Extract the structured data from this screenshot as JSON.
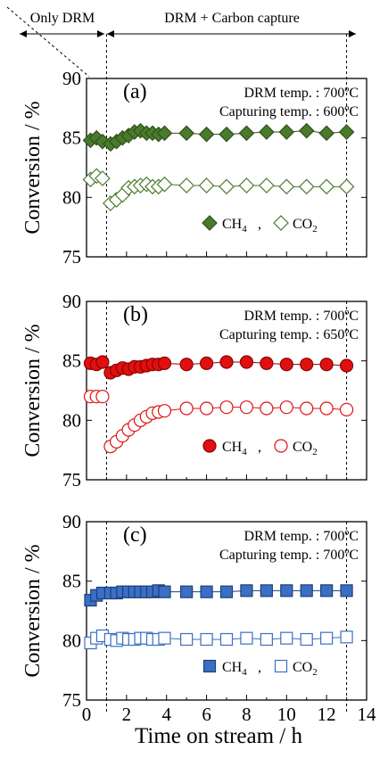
{
  "figure": {
    "top_left_label": "Only DRM",
    "top_right_label": "DRM + Carbon capture",
    "xlabel": "Time on stream / h",
    "x_ticks": [
      "0",
      "2",
      "4",
      "6",
      "8",
      "10",
      "12",
      "14"
    ],
    "legend_ch4_label": "CH",
    "legend_ch4_sub": "4",
    "legend_sep": ",",
    "legend_co2_label": "CO",
    "legend_co2_sub": "2"
  },
  "colors": {
    "a_fill": "#4a7a2c",
    "a_stroke": "#2e5218",
    "a_open": "#4a7a2c",
    "b_fill": "#e01010",
    "b_stroke": "#8b0000",
    "b_open": "#e01010",
    "c_fill": "#3a6fc4",
    "c_stroke": "#1d3f7a",
    "c_open": "#3a6fc4"
  },
  "panels": [
    {
      "label": "(a)",
      "note1": "DRM temp. : 700ºC",
      "note2": "Capturing temp. : 600ºC",
      "ylabel": "Conversion / %",
      "y_ticks": [
        "75",
        "80",
        "85",
        "90"
      ]
    },
    {
      "label": "(b)",
      "note1": "DRM temp. : 700ºC",
      "note2": "Capturing temp. : 650ºC",
      "ylabel": "Conversion / %",
      "y_ticks": [
        "75",
        "80",
        "85",
        "90"
      ]
    },
    {
      "label": "(c)",
      "note1": "DRM temp. : 700ºC",
      "note2": "Capturing temp. : 700ºC",
      "ylabel": "Conversion / %",
      "y_ticks": [
        "75",
        "80",
        "85",
        "90"
      ]
    }
  ],
  "chart_data": [
    {
      "type": "scatter",
      "title": "(a)",
      "xlabel": "",
      "ylabel": "Conversion / %",
      "xlim": [
        0,
        14
      ],
      "ylim": [
        75,
        90
      ],
      "marker": "diamond",
      "series": [
        {
          "name": "CH4",
          "filled": true,
          "x": [
            0.2,
            0.5,
            0.8,
            1.2,
            1.5,
            1.8,
            2.1,
            2.4,
            2.7,
            3.0,
            3.3,
            3.6,
            3.9,
            5,
            6,
            7,
            8,
            9,
            10,
            11,
            12,
            13
          ],
          "y": [
            84.8,
            85.0,
            84.7,
            84.5,
            84.7,
            85.0,
            85.2,
            85.5,
            85.6,
            85.4,
            85.4,
            85.3,
            85.4,
            85.4,
            85.3,
            85.3,
            85.4,
            85.5,
            85.5,
            85.6,
            85.4,
            85.5
          ]
        },
        {
          "name": "CO2",
          "filled": false,
          "x": [
            0.2,
            0.5,
            0.8,
            1.2,
            1.5,
            1.8,
            2.1,
            2.4,
            2.7,
            3.0,
            3.3,
            3.6,
            3.9,
            5,
            6,
            7,
            8,
            9,
            10,
            11,
            12,
            13
          ],
          "y": [
            81.5,
            81.8,
            81.6,
            79.5,
            79.8,
            80.2,
            80.8,
            80.9,
            81.0,
            81.1,
            80.9,
            80.9,
            81.1,
            81.0,
            81.0,
            80.9,
            81.0,
            81.0,
            80.9,
            80.9,
            80.9,
            80.9
          ]
        }
      ]
    },
    {
      "type": "scatter",
      "title": "(b)",
      "xlabel": "",
      "ylabel": "Conversion / %",
      "xlim": [
        0,
        14
      ],
      "ylim": [
        75,
        90
      ],
      "marker": "circle",
      "series": [
        {
          "name": "CH4",
          "filled": true,
          "x": [
            0.2,
            0.5,
            0.8,
            1.2,
            1.5,
            1.8,
            2.1,
            2.4,
            2.7,
            3.0,
            3.3,
            3.6,
            3.9,
            5,
            6,
            7,
            8,
            9,
            10,
            11,
            12,
            13
          ],
          "y": [
            84.8,
            84.7,
            84.9,
            84.0,
            84.2,
            84.4,
            84.3,
            84.5,
            84.5,
            84.6,
            84.7,
            84.7,
            84.8,
            84.7,
            84.8,
            84.9,
            84.9,
            84.8,
            84.7,
            84.7,
            84.7,
            84.6
          ]
        },
        {
          "name": "CO2",
          "filled": false,
          "x": [
            0.2,
            0.5,
            0.8,
            1.2,
            1.5,
            1.8,
            2.1,
            2.4,
            2.7,
            3.0,
            3.3,
            3.6,
            3.9,
            5,
            6,
            7,
            8,
            9,
            10,
            11,
            12,
            13
          ],
          "y": [
            82.0,
            82.0,
            82.0,
            77.8,
            78.2,
            78.7,
            79.2,
            79.6,
            80.0,
            80.3,
            80.6,
            80.7,
            80.8,
            81.0,
            81.0,
            81.1,
            81.1,
            81.0,
            81.1,
            81.0,
            81.0,
            80.9
          ]
        }
      ]
    },
    {
      "type": "scatter",
      "title": "(c)",
      "xlabel": "Time on stream / h",
      "ylabel": "Conversion / %",
      "xlim": [
        0,
        14
      ],
      "ylim": [
        75,
        90
      ],
      "marker": "square",
      "series": [
        {
          "name": "CH4",
          "filled": true,
          "x": [
            0.2,
            0.5,
            0.8,
            1.2,
            1.5,
            1.8,
            2.1,
            2.4,
            2.7,
            3.0,
            3.3,
            3.6,
            3.9,
            5,
            6,
            7,
            8,
            9,
            10,
            11,
            12,
            13
          ],
          "y": [
            83.4,
            83.8,
            84.0,
            84.0,
            84.0,
            84.1,
            84.1,
            84.1,
            84.1,
            84.1,
            84.1,
            84.2,
            84.1,
            84.1,
            84.1,
            84.1,
            84.2,
            84.2,
            84.2,
            84.2,
            84.2,
            84.2
          ]
        },
        {
          "name": "CO2",
          "filled": false,
          "x": [
            0.2,
            0.5,
            0.8,
            1.2,
            1.5,
            1.8,
            2.1,
            2.4,
            2.7,
            3.0,
            3.3,
            3.6,
            3.9,
            5,
            6,
            7,
            8,
            9,
            10,
            11,
            12,
            13
          ],
          "y": [
            79.8,
            80.2,
            80.4,
            80.1,
            80.0,
            80.2,
            80.1,
            80.1,
            80.2,
            80.2,
            80.1,
            80.1,
            80.2,
            80.1,
            80.1,
            80.1,
            80.2,
            80.1,
            80.2,
            80.1,
            80.2,
            80.3
          ]
        }
      ]
    }
  ]
}
